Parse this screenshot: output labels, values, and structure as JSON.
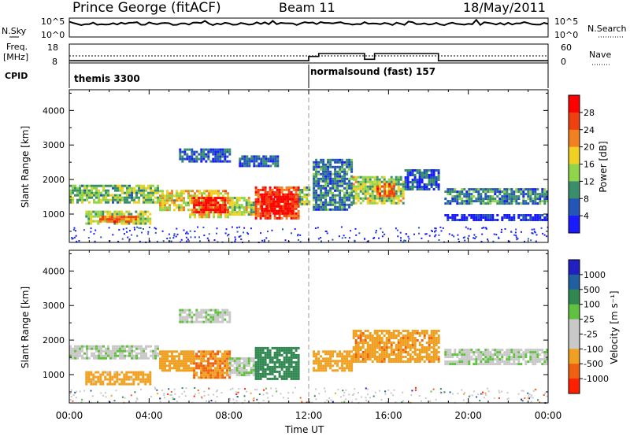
{
  "header": {
    "station": "Prince George (fitACF)",
    "beam": "Beam 11",
    "date": "18/May/2011"
  },
  "strip": {
    "nsky_label": "N.Sky",
    "nsky_ticks": [
      "10^5",
      "10^0"
    ],
    "nsearch_label": "N.Search",
    "freq_label_1": "Freq.",
    "freq_label_2": "[MHz]",
    "freq_ticks": [
      "18",
      "8"
    ],
    "nave_ticks": [
      "60",
      "0"
    ],
    "nave_label": "Nave",
    "cpid_label": "CPID",
    "cpid_modes": [
      {
        "name": "themis 3300",
        "start_hour": 0
      },
      {
        "name": "normalsound (fast) 157",
        "start_hour": 12
      }
    ]
  },
  "power_panel": {
    "ylabel": "Slant Range [km]",
    "yticks": [
      "1000",
      "2000",
      "3000",
      "4000"
    ],
    "colorbar_title": "Power [dB]",
    "colorbar_ticks": [
      "4",
      "8",
      "12",
      "16",
      "20",
      "24",
      "28"
    ],
    "colors": [
      "#1a1aff",
      "#2356b8",
      "#3a8f6a",
      "#8fd44a",
      "#f0d020",
      "#f08020",
      "#f04010",
      "#ff0000"
    ]
  },
  "velocity_panel": {
    "ylabel": "Slant Range [km]",
    "yticks": [
      "1000",
      "2000",
      "3000",
      "4000"
    ],
    "colorbar_title": "Velocity [m s⁻¹]",
    "colorbar_ticks": [
      "1000",
      "500",
      "100",
      "25",
      "-25",
      "-100",
      "-500",
      "-1000"
    ],
    "colors": [
      "#2020c0",
      "#2060a0",
      "#308850",
      "#60c040",
      "#c8c8c8",
      "#c8c8c8",
      "#f0a020",
      "#f06010",
      "#ff2000"
    ]
  },
  "xaxis": {
    "label": "Time UT",
    "ticks": [
      "00:00",
      "04:00",
      "08:00",
      "12:00",
      "16:00",
      "20:00",
      "00:00"
    ]
  },
  "chart_data": {
    "type": "heatmap",
    "title": "Prince George (fitACF) Beam 11 18/May/2011",
    "xlabel": "Time UT",
    "ylabel": "Slant Range [km]",
    "xlim_hours": [
      0,
      24
    ],
    "ylim_km": [
      180,
      4600
    ],
    "frequency_MHz": [
      {
        "start": 0,
        "end": 12,
        "value": 11
      },
      {
        "start": 12,
        "end": 24,
        "value": 11
      }
    ],
    "nave": [
      {
        "start": 0,
        "end": 12,
        "value": 5
      },
      {
        "start": 12,
        "end": 12.5,
        "value": 20
      },
      {
        "start": 12.5,
        "end": 14.8,
        "value": 30
      },
      {
        "start": 14.8,
        "end": 15.3,
        "value": 10
      },
      {
        "start": 15.3,
        "end": 18.5,
        "value": 30
      },
      {
        "start": 18.5,
        "end": 24,
        "value": 5
      }
    ],
    "power_regions": [
      {
        "t0": 0.0,
        "t1": 4.5,
        "r0": 1350,
        "r1": 1850,
        "dB": 14
      },
      {
        "t0": 0.8,
        "t1": 4.0,
        "r0": 700,
        "r1": 1100,
        "dB": 16
      },
      {
        "t0": 1.5,
        "t1": 3.5,
        "r0": 750,
        "r1": 950,
        "dB": 24
      },
      {
        "t0": 4.5,
        "t1": 6.0,
        "r0": 1100,
        "r1": 1700,
        "dB": 18
      },
      {
        "t0": 6.0,
        "t1": 8.0,
        "r0": 900,
        "r1": 1700,
        "dB": 20
      },
      {
        "t0": 6.2,
        "t1": 7.8,
        "r0": 1050,
        "r1": 1500,
        "dB": 30
      },
      {
        "t0": 8.0,
        "t1": 9.3,
        "r0": 1000,
        "r1": 1500,
        "dB": 16
      },
      {
        "t0": 9.3,
        "t1": 11.5,
        "r0": 900,
        "r1": 1800,
        "dB": 26
      },
      {
        "t0": 9.6,
        "t1": 11.2,
        "r0": 1000,
        "r1": 1600,
        "dB": 30
      },
      {
        "t0": 11.5,
        "t1": 12.0,
        "r0": 1300,
        "r1": 1800,
        "dB": 14
      },
      {
        "t0": 12.2,
        "t1": 14.2,
        "r0": 1100,
        "r1": 2600,
        "dB": 10
      },
      {
        "t0": 14.2,
        "t1": 16.8,
        "r0": 1300,
        "r1": 2100,
        "dB": 16
      },
      {
        "t0": 15.4,
        "t1": 16.3,
        "r0": 1550,
        "r1": 1900,
        "dB": 24
      },
      {
        "t0": 16.8,
        "t1": 18.5,
        "r0": 1700,
        "r1": 2300,
        "dB": 8
      },
      {
        "t0": 5.5,
        "t1": 8.0,
        "r0": 2500,
        "r1": 2900,
        "dB": 8
      },
      {
        "t0": 8.5,
        "t1": 10.5,
        "r0": 2400,
        "r1": 2700,
        "dB": 8
      },
      {
        "t0": 18.8,
        "t1": 24.0,
        "r0": 1300,
        "r1": 1750,
        "dB": 10
      },
      {
        "t0": 18.8,
        "t1": 24.0,
        "r0": 850,
        "r1": 1000,
        "dB": 4
      }
    ],
    "velocity_regions": [
      {
        "t0": 0.0,
        "t1": 4.5,
        "r0": 1450,
        "r1": 1850,
        "v": 0
      },
      {
        "t0": 0.8,
        "t1": 4.0,
        "r0": 700,
        "r1": 1100,
        "v": -150
      },
      {
        "t0": 4.5,
        "t1": 6.2,
        "r0": 1100,
        "r1": 1700,
        "v": -200
      },
      {
        "t0": 6.2,
        "t1": 8.0,
        "r0": 900,
        "r1": 1700,
        "v": -300
      },
      {
        "t0": 8.0,
        "t1": 9.3,
        "r0": 1000,
        "r1": 1500,
        "v": 0
      },
      {
        "t0": 9.3,
        "t1": 11.5,
        "r0": 900,
        "r1": 1800,
        "v": 200
      },
      {
        "t0": 12.2,
        "t1": 14.2,
        "r0": 1100,
        "r1": 1700,
        "v": -200
      },
      {
        "t0": 14.2,
        "t1": 18.5,
        "r0": 1400,
        "r1": 2300,
        "v": -250
      },
      {
        "t0": 5.5,
        "t1": 8.0,
        "r0": 2500,
        "r1": 2900,
        "v": 0
      },
      {
        "t0": 18.8,
        "t1": 24.0,
        "r0": 1300,
        "r1": 1750,
        "v": 0
      }
    ]
  }
}
